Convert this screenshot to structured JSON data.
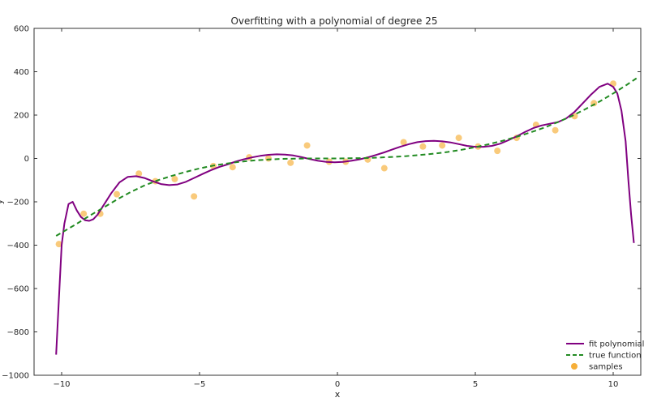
{
  "chart_data": {
    "type": "line",
    "title": "Overfitting with a polynomial of degree 25",
    "xlabel": "x",
    "ylabel": "y",
    "xlim": [
      -11,
      11
    ],
    "ylim": [
      -1000,
      600
    ],
    "xticks": [
      -10,
      -5,
      0,
      5,
      10
    ],
    "xtick_labels": [
      "−10",
      "−5",
      "0",
      "5",
      "10"
    ],
    "yticks": [
      -1000,
      -800,
      -600,
      -400,
      -200,
      0,
      200,
      400,
      600
    ],
    "ytick_labels": [
      "−1000",
      "−800",
      "−600",
      "−400",
      "−200",
      "0",
      "200",
      "400",
      "600"
    ],
    "grid": false,
    "legend_position": "bottom-right",
    "series": [
      {
        "name": "fit polynomial",
        "kind": "line",
        "style": "solid",
        "color": "#800080",
        "x": [
          -10.2,
          -10.1,
          -10.0,
          -9.9,
          -9.75,
          -9.6,
          -9.45,
          -9.3,
          -9.15,
          -9.0,
          -8.85,
          -8.7,
          -8.5,
          -8.2,
          -7.9,
          -7.6,
          -7.3,
          -7.0,
          -6.7,
          -6.4,
          -6.1,
          -5.8,
          -5.5,
          -5.2,
          -4.9,
          -4.6,
          -4.3,
          -4.0,
          -3.7,
          -3.4,
          -3.1,
          -2.8,
          -2.5,
          -2.2,
          -1.9,
          -1.6,
          -1.3,
          -1.0,
          -0.7,
          -0.4,
          -0.1,
          0.2,
          0.5,
          0.8,
          1.1,
          1.4,
          1.7,
          2.0,
          2.3,
          2.6,
          2.9,
          3.2,
          3.5,
          3.8,
          4.1,
          4.4,
          4.7,
          5.0,
          5.3,
          5.6,
          5.9,
          6.2,
          6.5,
          6.8,
          7.1,
          7.4,
          7.7,
          8.0,
          8.3,
          8.6,
          8.9,
          9.2,
          9.5,
          9.8,
          10.0,
          10.15,
          10.3,
          10.45,
          10.55,
          10.65,
          10.75
        ],
        "y": [
          -905,
          -650,
          -400,
          -300,
          -210,
          -200,
          -240,
          -270,
          -285,
          -288,
          -280,
          -260,
          -220,
          -160,
          -110,
          -85,
          -82,
          -90,
          -105,
          -118,
          -123,
          -120,
          -108,
          -90,
          -72,
          -55,
          -40,
          -28,
          -15,
          -4,
          5,
          12,
          17,
          19,
          18,
          14,
          6,
          -3,
          -11,
          -16,
          -18,
          -16,
          -11,
          -4,
          5,
          16,
          28,
          42,
          55,
          66,
          75,
          80,
          81,
          79,
          74,
          66,
          58,
          54,
          54,
          58,
          68,
          84,
          102,
          122,
          140,
          152,
          160,
          168,
          185,
          215,
          255,
          295,
          330,
          345,
          330,
          300,
          220,
          80,
          -100,
          -260,
          -390
        ]
      },
      {
        "name": "true function",
        "kind": "line",
        "style": "dashed",
        "color": "#228b22",
        "x": [
          -10.2,
          -9.5,
          -9.0,
          -8.5,
          -8.0,
          -7.5,
          -7.0,
          -6.5,
          -6.0,
          -5.5,
          -5.0,
          -4.5,
          -4.0,
          -3.5,
          -3.0,
          -2.5,
          -2.0,
          -1.5,
          -1.0,
          -0.5,
          0.0,
          0.5,
          1.0,
          1.5,
          2.0,
          2.5,
          3.0,
          3.5,
          4.0,
          4.5,
          5.0,
          5.5,
          6.0,
          6.5,
          7.0,
          7.5,
          8.0,
          8.5,
          9.0,
          9.5,
          10.0,
          10.5,
          10.85
        ],
        "y": [
          -357,
          -305,
          -265,
          -228,
          -190,
          -155,
          -125,
          -100,
          -80,
          -62,
          -46,
          -33,
          -23,
          -15,
          -9,
          -5,
          -2,
          -1,
          0,
          0,
          0,
          1,
          2,
          4,
          7,
          11,
          16,
          22,
          30,
          40,
          52,
          66,
          82,
          100,
          120,
          142,
          168,
          196,
          228,
          262,
          300,
          340,
          370
        ]
      },
      {
        "name": "samples",
        "kind": "scatter",
        "color": "#f5a623",
        "x": [
          -10.1,
          -9.2,
          -8.6,
          -8.0,
          -7.2,
          -6.6,
          -5.9,
          -5.2,
          -4.5,
          -3.8,
          -3.2,
          -2.5,
          -1.7,
          -1.1,
          -0.3,
          0.3,
          1.1,
          1.7,
          2.4,
          3.1,
          3.8,
          4.4,
          5.1,
          5.8,
          6.5,
          7.2,
          7.9,
          8.6,
          9.3,
          10.0
        ],
        "y": [
          -395,
          -255,
          -255,
          -165,
          -70,
          -105,
          -95,
          -175,
          -35,
          -40,
          5,
          0,
          -20,
          60,
          -15,
          -15,
          -5,
          -45,
          75,
          55,
          60,
          95,
          55,
          35,
          95,
          155,
          130,
          195,
          255,
          345
        ]
      }
    ]
  }
}
